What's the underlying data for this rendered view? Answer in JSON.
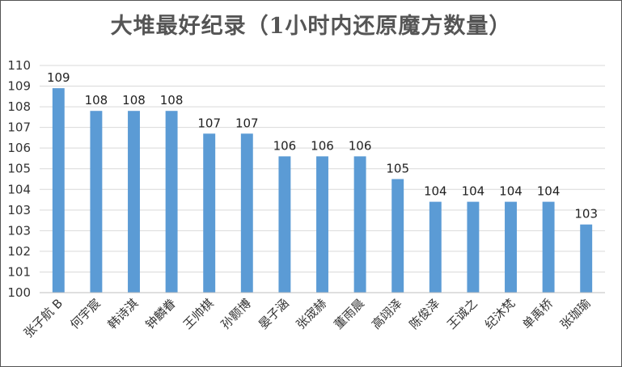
{
  "colors": {
    "bar": "#5b9bd5",
    "grid": "#d9d9d9",
    "axis": "#bfbfbf"
  },
  "chart_data": {
    "type": "bar",
    "title": "大堆最好纪录（1小时内还原魔方数量）",
    "xlabel": "",
    "ylabel": "",
    "ylim": [
      100,
      110
    ],
    "yticks": [
      "100",
      "101",
      "102",
      "103",
      "103",
      "104",
      "105",
      "106",
      "107",
      "108",
      "109",
      "110"
    ],
    "grid": true,
    "legend": "none",
    "categories": [
      "张子航 B",
      "何宇宸",
      "韩诗淇",
      "钟麟眷",
      "王帅棋",
      "孙颢博",
      "晏子涵",
      "张宬赫",
      "董雨晨",
      "高翊泽",
      "陈俊泽",
      "王诚之",
      "纪沐梵",
      "单禹桥",
      "张珈瑜"
    ],
    "values": [
      109,
      108,
      108,
      108,
      107,
      107,
      106,
      106,
      106,
      105,
      104,
      104,
      104,
      104,
      103
    ],
    "data_labels": [
      "109",
      "108",
      "108",
      "108",
      "107",
      "107",
      "106",
      "106",
      "106",
      "105",
      "104",
      "104",
      "104",
      "104",
      "103"
    ]
  }
}
